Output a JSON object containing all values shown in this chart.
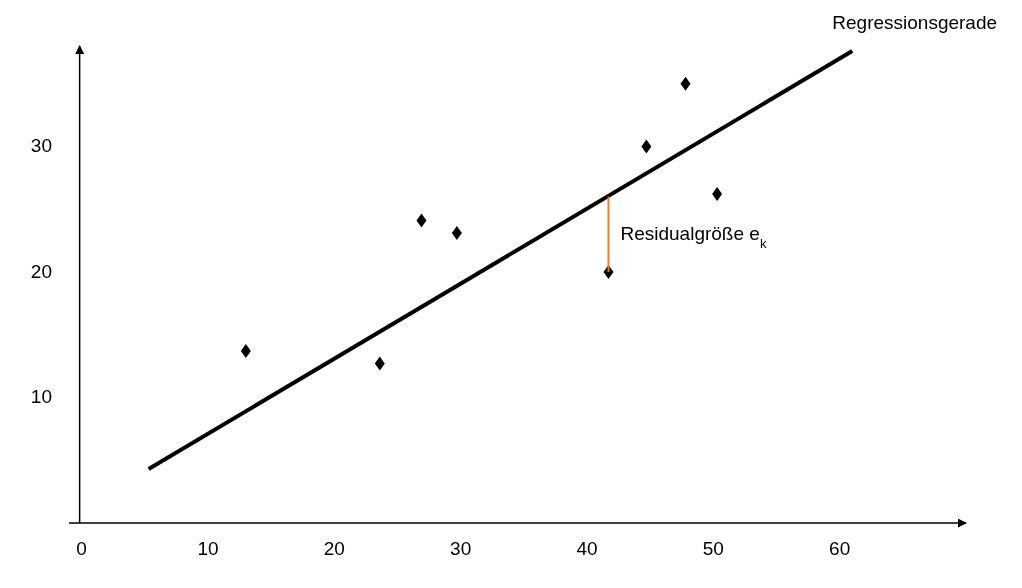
{
  "chart_data": {
    "type": "scatter",
    "xlim": [
      -1,
      70
    ],
    "ylim": [
      0,
      38
    ],
    "xticks": [
      0,
      10,
      20,
      30,
      40,
      50,
      60
    ],
    "yticks": [
      10,
      20,
      30
    ],
    "grid": false,
    "series": [
      {
        "color": "#000000",
        "marker": "diamond",
        "x": [
          13,
          23.6,
          26.9,
          29.7,
          41.7,
          44.7,
          47.8,
          50.3
        ],
        "values": [
          13.7,
          12.7,
          24.1,
          23.1,
          20,
          30,
          35,
          26.2
        ]
      },
      {
        "type": "line",
        "name": "Regressionsgerade",
        "color": "#000000",
        "x": [
          5.3,
          61
        ],
        "values": [
          4.3,
          37.6
        ]
      },
      {
        "type": "line",
        "color": "#ed7d31",
        "x": [
          41.7,
          41.7
        ],
        "values": [
          20,
          26
        ]
      }
    ],
    "annotations": [
      {
        "text": "Residualgröße e$_{k}$",
        "x": 41.7,
        "y": 23
      }
    ]
  }
}
